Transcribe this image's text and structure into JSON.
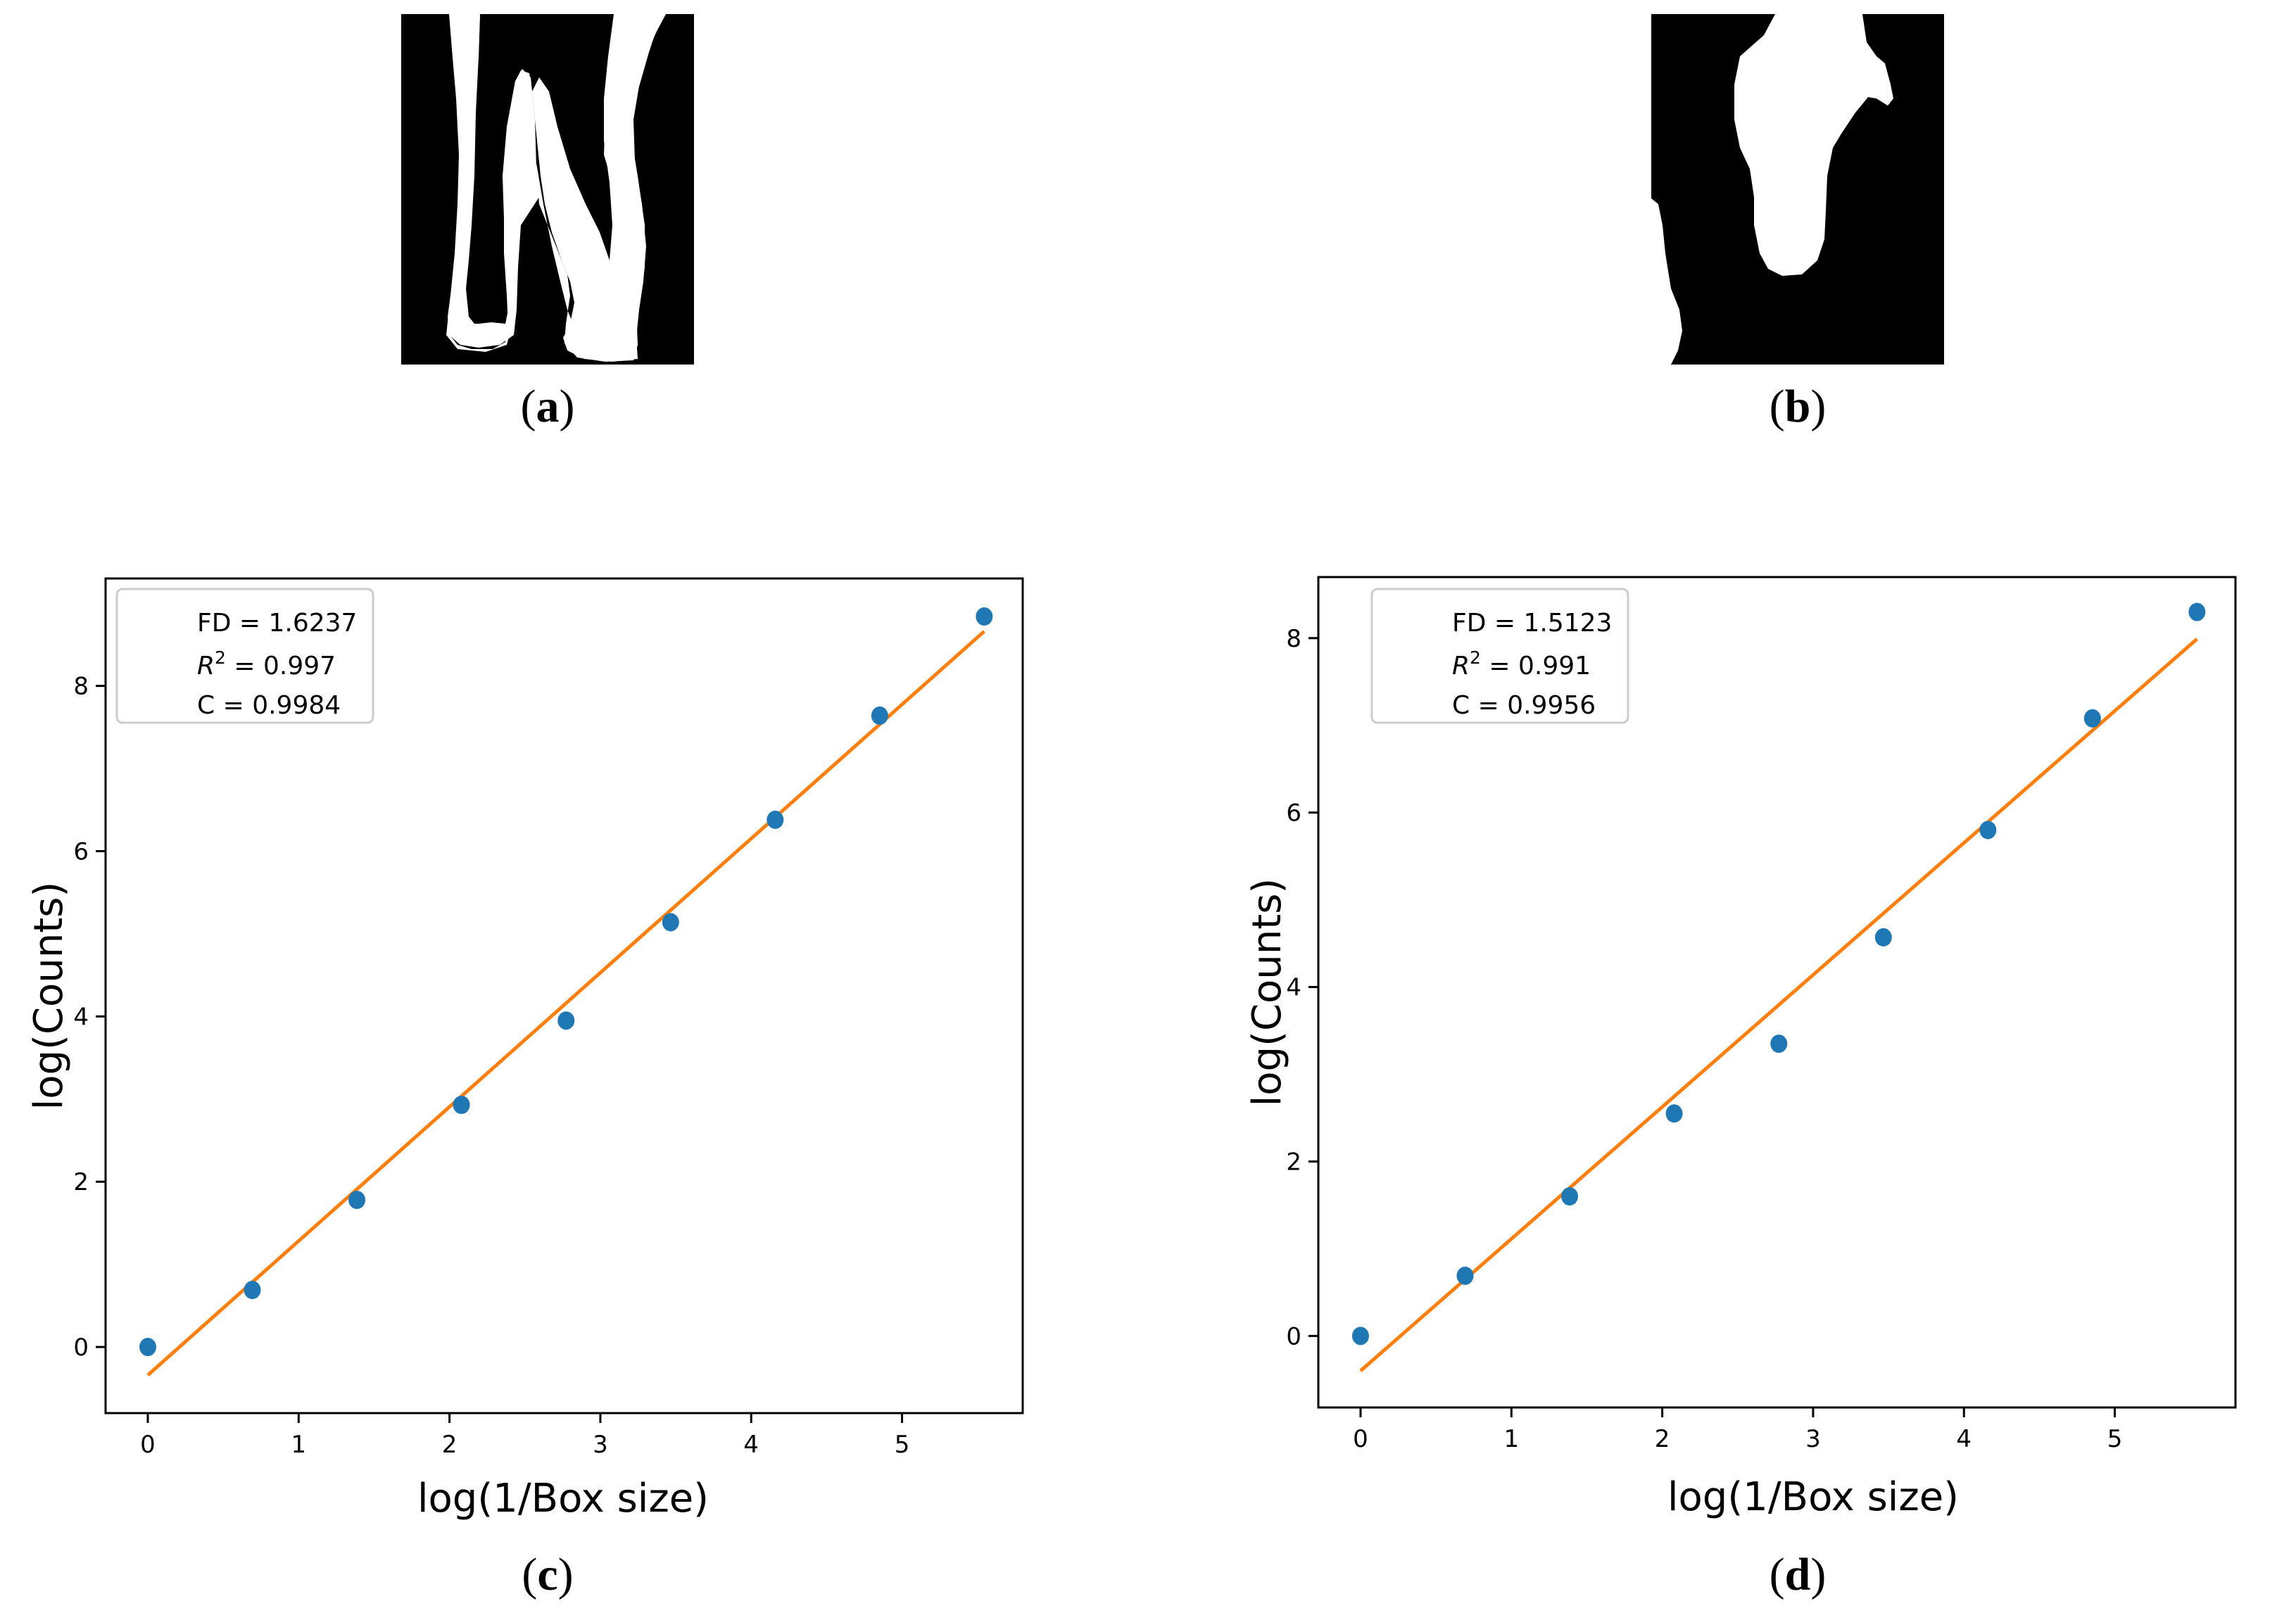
{
  "panels": {
    "a": {
      "label": "a"
    },
    "b": {
      "label": "b"
    },
    "c": {
      "label": "c"
    },
    "d": {
      "label": "d"
    }
  },
  "colors": {
    "points": "#1f77b4",
    "fit_line": "#ff7f0e",
    "mask_background": "#000000",
    "mask_foreground": "#ffffff"
  },
  "chart_data": [
    {
      "type": "scatter",
      "panel": "c",
      "xlabel": "log(1/Box size)",
      "ylabel": "log(Counts)",
      "xticks": [
        "0",
        "1",
        "2",
        "3",
        "4",
        "5"
      ],
      "yticks": [
        "0",
        "2",
        "4",
        "6",
        "8"
      ],
      "xlim": [
        -0.28,
        5.8
      ],
      "ylim": [
        -0.8,
        9.3
      ],
      "legend": {
        "placement": "top-left",
        "fd": "FD = 1.6237",
        "r2_prefix": "R",
        "r2_exp": "2",
        "r2_value": " = 0.997",
        "c": "C = 0.9984"
      },
      "series": [
        {
          "x": [
            0,
            0.693,
            1.386,
            2.079,
            2.773,
            3.466,
            4.159,
            4.852,
            5.545
          ],
          "y": [
            0,
            0.69,
            1.78,
            2.93,
            3.95,
            5.14,
            6.38,
            7.64,
            8.84
          ]
        }
      ],
      "fit": {
        "slope": 1.6237,
        "x": [
          0,
          5.545
        ],
        "y": [
          -0.34,
          8.66
        ]
      }
    },
    {
      "type": "scatter",
      "panel": "d",
      "xlabel": "log(1/Box size)",
      "ylabel": "log(Counts)",
      "xticks": [
        "0",
        "1",
        "2",
        "3",
        "4",
        "5"
      ],
      "yticks": [
        "0",
        "2",
        "4",
        "6",
        "8"
      ],
      "xlim": [
        -0.28,
        5.8
      ],
      "ylim": [
        -0.82,
        8.7
      ],
      "legend": {
        "placement": "top-left",
        "fd": "FD = 1.5123",
        "r2_prefix": "R",
        "r2_exp": "2",
        "r2_value": " = 0.991",
        "c": "C = 0.9956"
      },
      "series": [
        {
          "x": [
            0,
            0.693,
            1.386,
            2.079,
            2.773,
            3.466,
            4.159,
            4.852,
            5.545
          ],
          "y": [
            0,
            0.69,
            1.6,
            2.55,
            3.35,
            4.57,
            5.8,
            7.08,
            8.3
          ]
        }
      ],
      "fit": {
        "slope": 1.5123,
        "x": [
          0,
          5.545
        ],
        "y": [
          -0.4,
          7.99
        ]
      }
    }
  ]
}
